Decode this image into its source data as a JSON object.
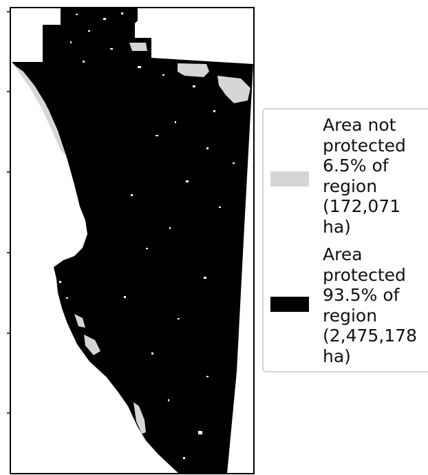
{
  "legend": {
    "items": [
      {
        "label": "Area not\nprotected\n6.5% of\nregion\n(172,071\nha)",
        "color": "#d6d6d6"
      },
      {
        "label": "Area\nprotected\n93.5% of\nregion\n(2,475,178\nha)",
        "color": "#000000"
      }
    ]
  },
  "colors": {
    "protected": "#000000",
    "not_protected": "#d6d6d6",
    "background": "#ffffff"
  }
}
